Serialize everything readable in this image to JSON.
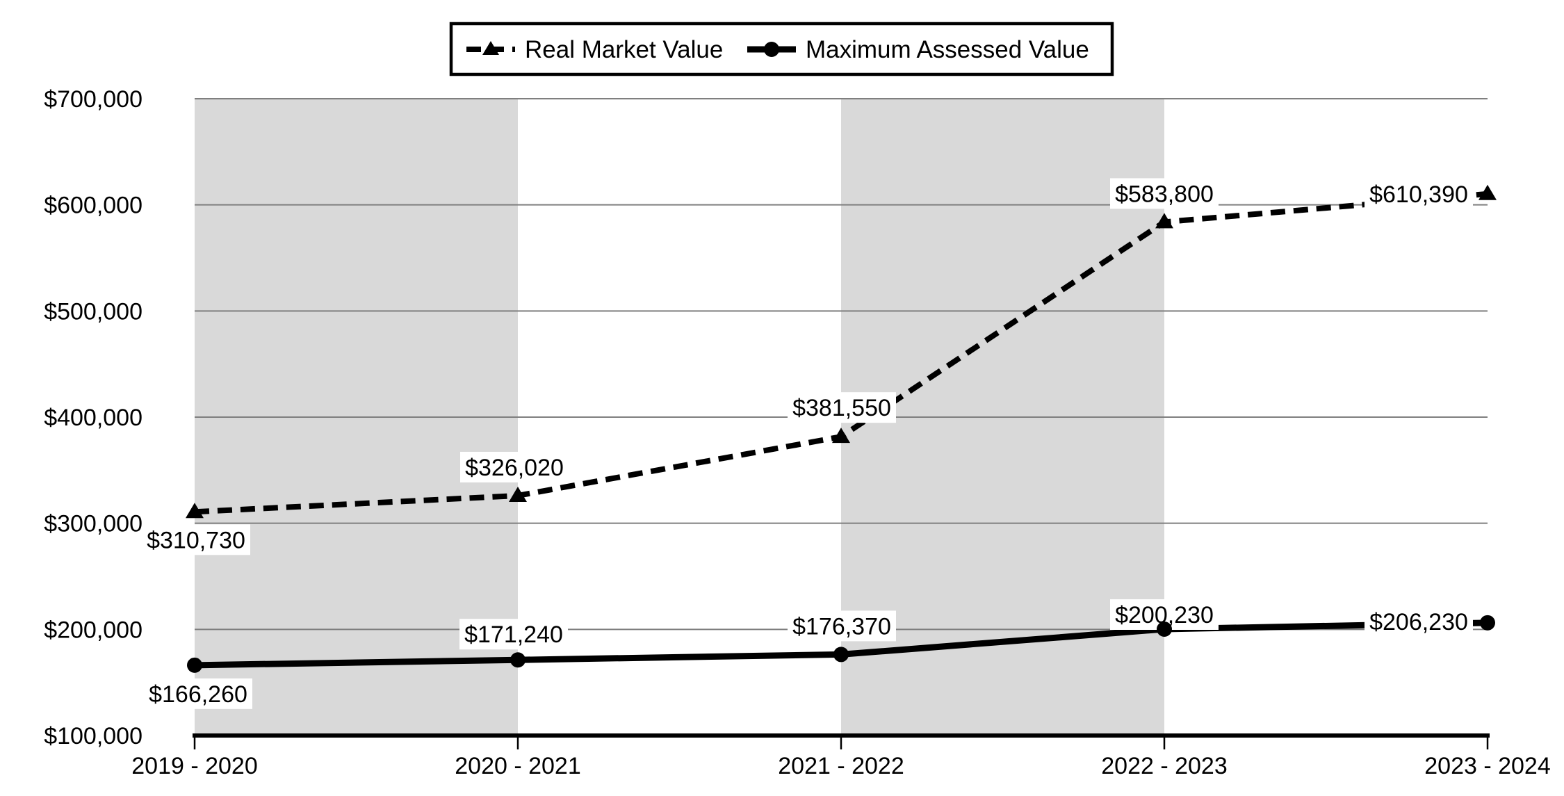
{
  "chart_data": {
    "type": "line",
    "title": "",
    "categories": [
      "2019 - 2020",
      "2020 - 2021",
      "2021 - 2022",
      "2022 - 2023",
      "2023 - 2024"
    ],
    "series": [
      {
        "name": "Real Market Value",
        "line_style": "dashed",
        "marker": "triangle",
        "values": [
          310730,
          326020,
          381550,
          583800,
          610390
        ],
        "point_labels": [
          "$310,730",
          "$326,020",
          "$381,550",
          "$583,800",
          "$610,390"
        ],
        "label_offsets": [
          [
            2,
            40
          ],
          [
            -5,
            -41
          ],
          [
            1,
            -42
          ],
          [
            0,
            -41
          ],
          [
            -99,
            0
          ]
        ]
      },
      {
        "name": "Maximum Assessed Value",
        "line_style": "solid",
        "marker": "circle",
        "values": [
          166260,
          171240,
          176370,
          200230,
          206230
        ],
        "point_labels": [
          "$166,260",
          "$171,240",
          "$176,370",
          "$200,230",
          "$206,230"
        ],
        "label_offsets": [
          [
            5,
            41
          ],
          [
            -6,
            -37
          ],
          [
            1,
            -41
          ],
          [
            0,
            -21
          ],
          [
            -99,
            -2
          ]
        ]
      }
    ],
    "y_axis": {
      "min": 100000,
      "max": 700000,
      "step": 100000,
      "tick_labels": [
        "$100,000",
        "$200,000",
        "$300,000",
        "$400,000",
        "$500,000",
        "$600,000",
        "$700,000"
      ]
    },
    "x_axis": {
      "tick_labels": [
        "2019 - 2020",
        "2020 - 2021",
        "2021 - 2022",
        "2022 - 2023",
        "2023 - 2024"
      ]
    },
    "legend": {
      "position": "top",
      "entries": [
        "Real Market Value",
        "Maximum Assessed Value"
      ]
    },
    "grid": true,
    "band_intervals": [
      [
        0,
        1
      ],
      [
        2,
        3
      ]
    ],
    "colors": {
      "series": "#000000",
      "band": "#d9d9d9",
      "gridline": "#7f7f7f",
      "axis": "#000000",
      "label_box": "#ffffff",
      "background": "#ffffff"
    }
  }
}
